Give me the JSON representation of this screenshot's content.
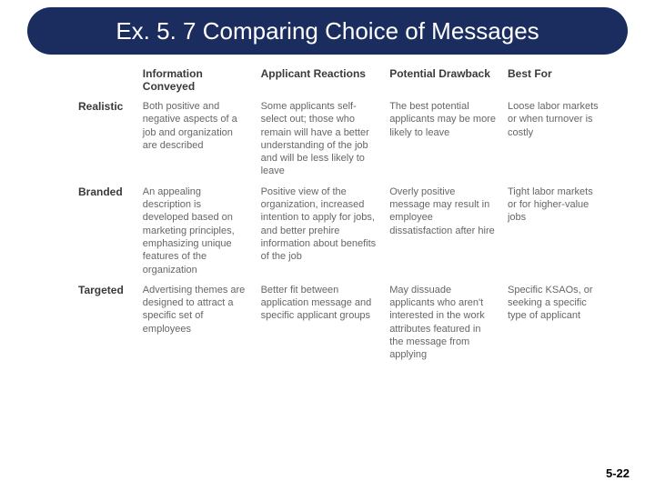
{
  "slide": {
    "title": "Ex. 5. 7 Comparing Choice of Messages",
    "page_number": "5-22",
    "colors": {
      "title_bg": "#1a2d5e",
      "title_text": "#ffffff",
      "header_text": "#3a3a3a",
      "cell_text": "#666666",
      "background": "#ffffff",
      "page_num": "#000000"
    },
    "typography": {
      "title_fontsize": 26,
      "header_fontsize": 12,
      "cell_fontsize": 11,
      "page_num_fontsize": 13
    },
    "table": {
      "type": "table",
      "columns": [
        "",
        "Information Conveyed",
        "Applicant Reactions",
        "Potential Drawback",
        "Best For"
      ],
      "column_widths_pct": [
        12,
        22,
        24,
        22,
        20
      ],
      "rows": [
        {
          "label": "Realistic",
          "cells": [
            "Both positive and negative aspects of a job and organization are described",
            "Some applicants self-select out; those who remain will have a better understanding of the job and will be less likely to leave",
            "The best potential applicants may be more likely to leave",
            "Loose labor markets or when turnover is costly"
          ]
        },
        {
          "label": "Branded",
          "cells": [
            "An appealing description is developed based on marketing principles, emphasizing unique features of the organization",
            "Positive view of the organization, increased intention to apply for jobs, and better prehire information about benefits of the job",
            "Overly positive message may result in employee dissatisfaction after hire",
            "Tight labor markets or for higher-value jobs"
          ]
        },
        {
          "label": "Targeted",
          "cells": [
            "Advertising themes are designed to attract a specific set of employees",
            "Better fit between application message and specific applicant groups",
            "May dissuade applicants who aren't interested in the work attributes featured in the message from applying",
            "Specific KSAOs, or seeking a specific type of applicant"
          ]
        }
      ]
    }
  }
}
